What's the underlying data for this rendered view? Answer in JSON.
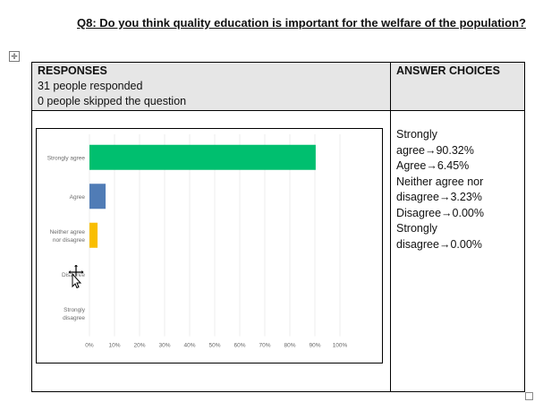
{
  "question": {
    "title": "Q8: Do you think quality education is important for the welfare of the population?"
  },
  "table": {
    "responses_header": "RESPONSES",
    "responded": "31  people responded",
    "skipped": "0 people skipped the question",
    "answer_choices_header": "ANSWER CHOICES",
    "answers_text": [
      "Strongly",
      "agree→90.32%",
      "Agree→6.45%",
      "Neither agree nor",
      "disagree→3.23%",
      "Disagree→0.00%",
      "Strongly",
      "disagree→0.00%"
    ]
  },
  "icons": {
    "table_move": "table-move-icon",
    "table_resize": "table-resize-icon",
    "cursor": "move-cursor-icon"
  },
  "chart_data": {
    "type": "bar",
    "orientation": "horizontal",
    "categories": [
      [
        "Strongly agree"
      ],
      [
        "Agree"
      ],
      [
        "Neither agree",
        "nor disagree"
      ],
      [
        "Disagree"
      ],
      [
        "Strongly",
        "disagree"
      ]
    ],
    "values": [
      90.32,
      6.45,
      3.23,
      0.0,
      0.0
    ],
    "colors": [
      "#00bf6f",
      "#507cb6",
      "#f9be00",
      "#a0a0a0",
      "#a0a0a0"
    ],
    "xlim": [
      0,
      100
    ],
    "x_ticks": [
      "0%",
      "10%",
      "20%",
      "30%",
      "40%",
      "50%",
      "60%",
      "70%",
      "80%",
      "90%",
      "100%"
    ],
    "grid": true
  }
}
